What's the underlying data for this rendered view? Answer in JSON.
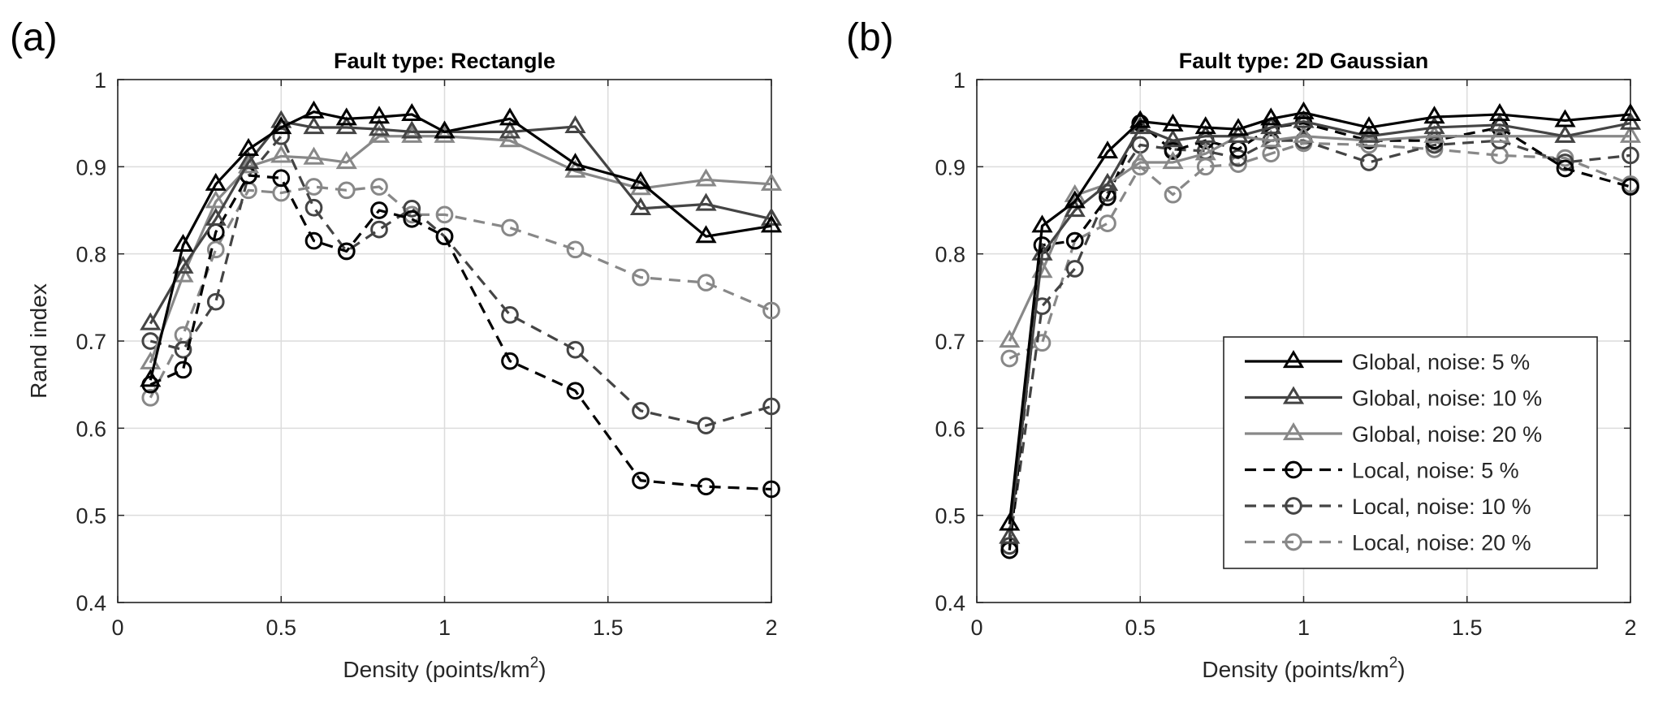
{
  "figure": {
    "panel_a_label": "(a)",
    "panel_b_label": "(b)"
  },
  "chart_data": [
    {
      "type": "line",
      "panel": "(a)",
      "title": "Fault type: Rectangle",
      "xlabel": "Density (points/km",
      "xlabel_sup": "2",
      "xlabel_end": ")",
      "ylabel": "Rand index",
      "xlim": [
        0,
        2
      ],
      "ylim": [
        0.4,
        1
      ],
      "xticks": [
        0,
        0.5,
        1,
        1.5,
        2
      ],
      "xtick_labels": [
        "0",
        "0.5",
        "1",
        "1.5",
        "2"
      ],
      "yticks": [
        0.4,
        0.5,
        0.6,
        0.7,
        0.8,
        0.9,
        1
      ],
      "ytick_labels": [
        "0.4",
        "0.5",
        "0.6",
        "0.7",
        "0.8",
        "0.9",
        "1"
      ],
      "grid": true,
      "x": [
        0.1,
        0.2,
        0.3,
        0.4,
        0.5,
        0.6,
        0.7,
        0.8,
        0.9,
        1.0,
        1.2,
        1.4,
        1.6,
        1.8,
        2.0
      ],
      "series": [
        {
          "name": "Global, noise: 5 %",
          "color": "#000000",
          "dash": "solid",
          "marker": "triangle",
          "values": [
            0.655,
            0.81,
            0.88,
            0.92,
            0.945,
            0.963,
            0.955,
            0.957,
            0.96,
            0.94,
            0.955,
            0.903,
            0.882,
            0.82,
            0.832
          ]
        },
        {
          "name": "Global, noise: 10 %",
          "color": "#444444",
          "dash": "solid",
          "marker": "triangle",
          "values": [
            0.72,
            0.785,
            0.84,
            0.905,
            0.952,
            0.945,
            0.945,
            0.943,
            0.94,
            0.94,
            0.94,
            0.946,
            0.852,
            0.857,
            0.84
          ]
        },
        {
          "name": "Global, noise: 20 %",
          "color": "#888888",
          "dash": "solid",
          "marker": "triangle",
          "values": [
            0.675,
            0.775,
            0.86,
            0.9,
            0.912,
            0.91,
            0.905,
            0.935,
            0.935,
            0.935,
            0.93,
            0.895,
            0.875,
            0.885,
            0.88
          ]
        },
        {
          "name": "Local, noise: 5 %",
          "color": "#000000",
          "dash": "dashed",
          "marker": "circle",
          "values": [
            0.65,
            0.667,
            0.825,
            0.89,
            0.887,
            0.815,
            0.803,
            0.85,
            0.84,
            0.82,
            0.677,
            0.643,
            0.54,
            0.533,
            0.53
          ]
        },
        {
          "name": "Local, noise: 10 %",
          "color": "#444444",
          "dash": "dashed",
          "marker": "circle",
          "values": [
            0.7,
            0.69,
            0.745,
            0.89,
            0.935,
            0.853,
            0.803,
            0.828,
            0.852,
            0.82,
            0.73,
            0.69,
            0.62,
            0.603,
            0.625
          ]
        },
        {
          "name": "Local, noise: 20 %",
          "color": "#888888",
          "dash": "dashed",
          "marker": "circle",
          "values": [
            0.635,
            0.707,
            0.805,
            0.873,
            0.87,
            0.877,
            0.873,
            0.877,
            0.845,
            0.845,
            0.83,
            0.805,
            0.773,
            0.767,
            0.735
          ]
        }
      ]
    },
    {
      "type": "line",
      "panel": "(b)",
      "title": "Fault type: 2D Gaussian",
      "xlabel": "Density (points/km",
      "xlabel_sup": "2",
      "xlabel_end": ")",
      "ylabel": "",
      "xlim": [
        0,
        2
      ],
      "ylim": [
        0.4,
        1
      ],
      "xticks": [
        0,
        0.5,
        1,
        1.5,
        2
      ],
      "xtick_labels": [
        "0",
        "0.5",
        "1",
        "1.5",
        "2"
      ],
      "yticks": [
        0.4,
        0.5,
        0.6,
        0.7,
        0.8,
        0.9,
        1
      ],
      "ytick_labels": [
        "0.4",
        "0.5",
        "0.6",
        "0.7",
        "0.8",
        "0.9",
        "1"
      ],
      "grid": true,
      "legend_position": "bottom-right",
      "x": [
        0.1,
        0.2,
        0.3,
        0.4,
        0.5,
        0.6,
        0.7,
        0.8,
        0.9,
        1.0,
        1.2,
        1.4,
        1.6,
        1.8,
        2.0
      ],
      "series": [
        {
          "name": "Global, noise: 5 %",
          "color": "#000000",
          "dash": "solid",
          "marker": "triangle",
          "values": [
            0.49,
            0.832,
            0.86,
            0.917,
            0.952,
            0.948,
            0.945,
            0.943,
            0.955,
            0.962,
            0.945,
            0.957,
            0.96,
            0.953,
            0.96
          ]
        },
        {
          "name": "Global, noise: 10 %",
          "color": "#444444",
          "dash": "solid",
          "marker": "triangle",
          "values": [
            0.475,
            0.8,
            0.85,
            0.88,
            0.945,
            0.93,
            0.935,
            0.935,
            0.945,
            0.952,
            0.935,
            0.945,
            0.948,
            0.935,
            0.95
          ]
        },
        {
          "name": "Global, noise: 20 %",
          "color": "#888888",
          "dash": "solid",
          "marker": "triangle",
          "values": [
            0.7,
            0.78,
            0.867,
            0.88,
            0.905,
            0.905,
            0.915,
            0.935,
            0.93,
            0.935,
            0.93,
            0.935,
            0.935,
            0.935,
            0.935
          ]
        },
        {
          "name": "Local, noise: 5 %",
          "color": "#000000",
          "dash": "dashed",
          "marker": "circle",
          "values": [
            0.46,
            0.81,
            0.815,
            0.865,
            0.95,
            0.918,
            0.93,
            0.92,
            0.945,
            0.95,
            0.93,
            0.93,
            0.945,
            0.898,
            0.877
          ]
        },
        {
          "name": "Local, noise: 10 %",
          "color": "#444444",
          "dash": "dashed",
          "marker": "circle",
          "values": [
            0.465,
            0.74,
            0.783,
            0.87,
            0.925,
            0.92,
            0.918,
            0.91,
            0.93,
            0.93,
            0.905,
            0.925,
            0.93,
            0.905,
            0.913
          ]
        },
        {
          "name": "Local, noise: 20 %",
          "color": "#888888",
          "dash": "dashed",
          "marker": "circle",
          "values": [
            0.68,
            0.698,
            0.815,
            0.835,
            0.9,
            0.868,
            0.9,
            0.903,
            0.915,
            0.927,
            0.925,
            0.92,
            0.913,
            0.91,
            0.88
          ]
        }
      ]
    }
  ]
}
